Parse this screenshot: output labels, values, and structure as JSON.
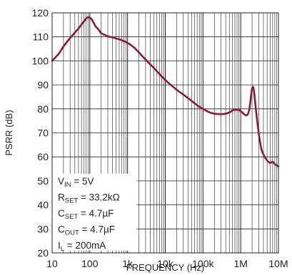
{
  "chart_data": {
    "type": "line",
    "title": "",
    "xlabel": "FREQUENCY (Hz)",
    "ylabel": "PSRR (dB)",
    "x_scale": "log",
    "xlim": [
      10,
      10000000
    ],
    "ylim": [
      20,
      120
    ],
    "grid": true,
    "x_tick_labels": [
      "10",
      "100",
      "1k",
      "10k",
      "100k",
      "1M",
      "10M"
    ],
    "y_tick_labels": [
      "20",
      "30",
      "40",
      "50",
      "60",
      "70",
      "80",
      "90",
      "100",
      "110",
      "120"
    ],
    "series": [
      {
        "color": "#8b1a3a",
        "points": [
          [
            10,
            100
          ],
          [
            15,
            103
          ],
          [
            20,
            106
          ],
          [
            30,
            109.5
          ],
          [
            50,
            113.5
          ],
          [
            70,
            116.5
          ],
          [
            85,
            118
          ],
          [
            100,
            118
          ],
          [
            115,
            117
          ],
          [
            140,
            114.5
          ],
          [
            160,
            113.5
          ],
          [
            180,
            112.5
          ],
          [
            200,
            111.5
          ],
          [
            250,
            110.8
          ],
          [
            300,
            110.2
          ],
          [
            400,
            109.8
          ],
          [
            500,
            109.3
          ],
          [
            700,
            108.6
          ],
          [
            1000,
            107.5
          ],
          [
            1500,
            105.5
          ],
          [
            2000,
            103.5
          ],
          [
            3000,
            100.5
          ],
          [
            5000,
            97
          ],
          [
            10000,
            92
          ],
          [
            20000,
            88
          ],
          [
            40000,
            84.5
          ],
          [
            70000,
            81.5
          ],
          [
            100000,
            80
          ],
          [
            150000,
            78.5
          ],
          [
            200000,
            78
          ],
          [
            300000,
            77.8
          ],
          [
            400000,
            78
          ],
          [
            500000,
            78.5
          ],
          [
            600000,
            79.3
          ],
          [
            700000,
            79.6
          ],
          [
            900000,
            79.5
          ],
          [
            1100000,
            78.5
          ],
          [
            1300000,
            77.5
          ],
          [
            1500000,
            77.5
          ],
          [
            1700000,
            80
          ],
          [
            1900000,
            86
          ],
          [
            2000000,
            88.5
          ],
          [
            2150000,
            89
          ],
          [
            2300000,
            86
          ],
          [
            2600000,
            78
          ],
          [
            3000000,
            70
          ],
          [
            3500000,
            63.5
          ],
          [
            4000000,
            61
          ],
          [
            5000000,
            58.5
          ],
          [
            6000000,
            57.5
          ],
          [
            7000000,
            58
          ],
          [
            8000000,
            57
          ],
          [
            10000000,
            56
          ]
        ]
      }
    ],
    "annotation": {
      "lines": [
        {
          "main": "V",
          "sub": "IN",
          "rest": " = 5V"
        },
        {
          "main": "R",
          "sub": "SET",
          "rest": " = 33.2kΩ"
        },
        {
          "main": "C",
          "sub": "SET",
          "rest": " = 4.7µF"
        },
        {
          "main": "C",
          "sub": "OUT",
          "rest": " = 4.7µF"
        },
        {
          "main": "I",
          "sub": "L",
          "rest": " = 200mA"
        }
      ]
    }
  },
  "colors": {
    "curve": "#8b1a3a",
    "grid": "#231f20",
    "text": "#231f20",
    "background": "#ffffff"
  }
}
